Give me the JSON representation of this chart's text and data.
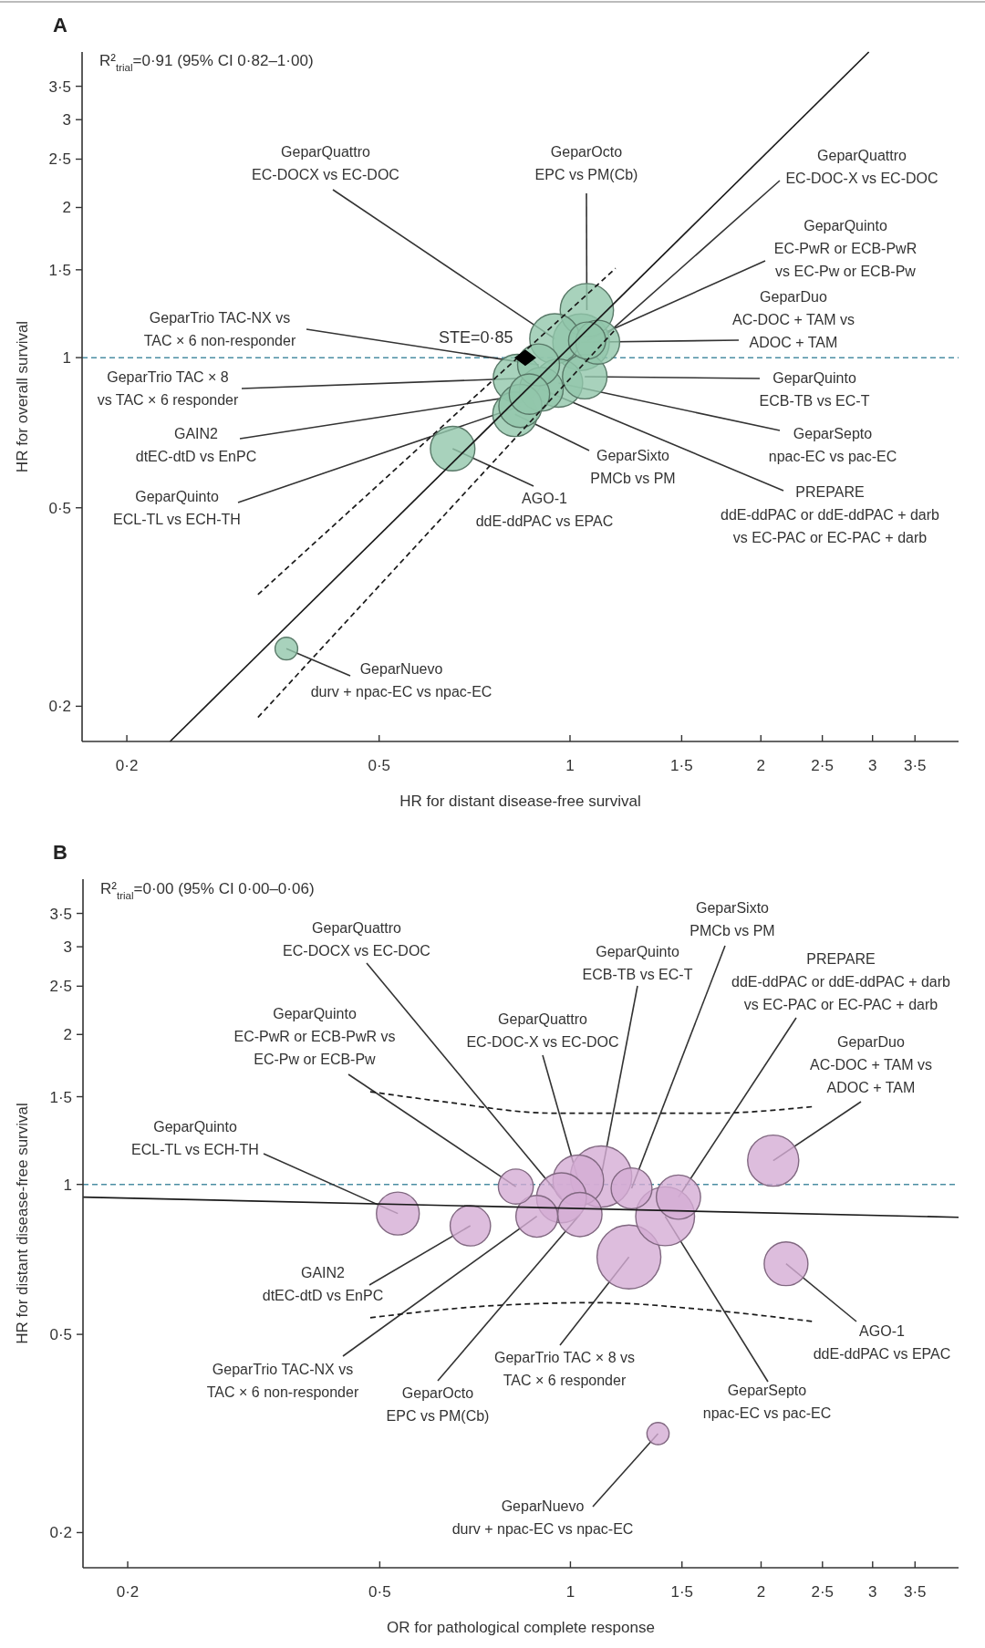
{
  "chart_data": [
    {
      "type": "bubble",
      "title": "A",
      "xlabel": "HR for distant disease-free survival",
      "ylabel": "HR for overall survival",
      "log": "xy",
      "xlim": [
        0.17,
        4.1
      ],
      "ylim": [
        0.17,
        4.1
      ],
      "xticks": [
        {
          "value": 0.2,
          "label": "0·2"
        },
        {
          "value": 0.5,
          "label": "0·5"
        },
        1,
        {
          "value": 1.5,
          "label": "1·5"
        },
        2,
        {
          "value": 2.5,
          "label": "2·5"
        },
        3,
        {
          "value": 3.5,
          "label": "3·5"
        }
      ],
      "yticks": [
        {
          "value": 0.2,
          "label": "0·2"
        },
        {
          "value": 0.5,
          "label": "0·5"
        },
        1,
        {
          "value": 1.5,
          "label": "1·5"
        },
        2,
        {
          "value": 2.5,
          "label": "2·5"
        },
        3,
        {
          "value": 3.5,
          "label": "3·5"
        }
      ],
      "series": [
        {
          "type": "bubble",
          "color": "#92c7ab",
          "x": [
            0.835,
            0.863,
            1.064,
            0.892,
            0.946,
            1.063,
            1.106,
            1.055,
            0.819,
            0.901,
            0.959,
            0.826,
            1.041,
            0.653,
            0.357
          ],
          "values": [
            0.8,
            0.845,
            1.082,
            0.967,
            1.091,
            1.245,
            1.074,
            0.916,
            0.77,
            0.864,
            0.889,
            0.908,
            1.074,
            0.657,
            0.261
          ],
          "sizes": [
            0.58,
            0.51,
            0.43,
            0.55,
            0.78,
            0.89,
            0.6,
            0.62,
            0.62,
            0.6,
            0.73,
            0.73,
            1,
            0.62,
            0.16
          ]
        },
        {
          "type": "line",
          "color": "#1a1a1a",
          "line_style": "solid",
          "x": [
            0.234,
            2.96
          ],
          "values": [
            0.17,
            4.1
          ]
        },
        {
          "type": "line",
          "color": "#1a1a1a",
          "line_style": "dashed",
          "x": [
            0.322,
            1.18
          ],
          "values": [
            0.335,
            1.51
          ]
        },
        {
          "type": "line",
          "color": "#1a1a1a",
          "line_style": "dashed",
          "x": [
            0.322,
            1.18
          ],
          "values": [
            0.19,
            1.14
          ]
        },
        {
          "type": "scatter",
          "color": "#000000",
          "marker": "diamond",
          "x": [
            0.85
          ],
          "values": [
            1
          ]
        }
      ],
      "ref_lines": [
        {
          "axis": "y",
          "value": 1,
          "color": "#4b8ea3",
          "line_style": "dashed"
        }
      ],
      "annotations": [
        "R²$_{trial}$=0·91 (95% CI 0·82–1·00)",
        {
          "text": "STE=0·85",
          "x": 0.85,
          "y": 1
        },
        {
          "text": "GeparQuinto\nECL-TL vs ECH-TH",
          "x": 0.835,
          "y": 0.8
        },
        {
          "text": "GAIN2\ndtEC-dtD vs EnPC",
          "x": 0.863,
          "y": 0.845
        },
        {
          "text": "GeparQuinto\nEC-PwR or ECB-PwR\nvs EC-Pw or ECB-Pw",
          "x": 1.064,
          "y": 1.082
        },
        {
          "text": "GeparTrio TAC-NX vs\nTAC × 6 non-responder",
          "x": 0.892,
          "y": 0.967
        },
        {
          "text": "GeparQuattro\nEC-DOCX vs EC-DOC",
          "x": 0.946,
          "y": 1.091
        },
        {
          "text": "GeparOcto\nEPC vs PM(Cb)",
          "x": 1.063,
          "y": 1.245
        },
        {
          "text": "GeparQuattro\nEC-DOC-X vs EC-DOC",
          "x": 1.106,
          "y": 1.074
        },
        {
          "text": "GeparQuinto\nECB-TB vs EC-T",
          "x": 1.055,
          "y": 0.916
        },
        {
          "text": "GeparSixto\nPMCb vs PM",
          "x": 0.819,
          "y": 0.77
        },
        {
          "text": "PREPARE\nddE-ddPAC or ddE-ddPAC + darb\nvs EC-PAC or EC-PAC + darb",
          "x": 0.901,
          "y": 0.864
        },
        {
          "text": "GeparSepto\nnpac-EC vs pac-EC",
          "x": 0.959,
          "y": 0.889
        },
        {
          "text": "GeparTrio TAC × 8\nvs TAC × 6 responder",
          "x": 0.826,
          "y": 0.908
        },
        {
          "text": "GeparDuo\nAC-DOC + TAM vs\nADOC + TAM",
          "x": 1.041,
          "y": 1.074
        },
        {
          "text": "AGO-1\nddE-ddPAC vs EPAC",
          "x": 0.653,
          "y": 0.657
        },
        {
          "text": "GeparNuevo\ndurv + npac-EC vs npac-EC",
          "x": 0.357,
          "y": 0.261
        }
      ]
    },
    {
      "type": "bubble",
      "title": "B",
      "xlabel": "OR for pathological complete response",
      "ylabel": "HR for distant disease-free survival",
      "log": "xy",
      "xlim": [
        0.17,
        4.1
      ],
      "ylim": [
        0.17,
        4.1
      ],
      "xticks": [
        {
          "value": 0.2,
          "label": "0·2"
        },
        {
          "value": 0.5,
          "label": "0·5"
        },
        1,
        {
          "value": 1.5,
          "label": "1·5"
        },
        2,
        {
          "value": 2.5,
          "label": "2·5"
        },
        3,
        {
          "value": 3.5,
          "label": "3·5"
        }
      ],
      "yticks": [
        {
          "value": 0.2,
          "label": "0·2"
        },
        {
          "value": 0.5,
          "label": "0·5"
        },
        1,
        {
          "value": 1.5,
          "label": "1·5"
        },
        2,
        {
          "value": 2.5,
          "label": "2·5"
        },
        3,
        {
          "value": 3.5,
          "label": "3·5"
        }
      ],
      "series": [
        {
          "type": "bubble",
          "color": "#d4acd4",
          "x": [
            0.534,
            0.695,
            0.82,
            0.885,
            0.968,
            1.035,
            1.029,
            1.118,
            1.249,
            1.481,
            1.411,
            1.237,
            2.09,
            2.19,
            1.375
          ],
          "values": [
            0.874,
            0.826,
            0.99,
            0.863,
            0.94,
            0.87,
            1.019,
            1.037,
            0.982,
            0.943,
            0.863,
            0.715,
            1.116,
            0.693,
            0.316
          ],
          "sizes": [
            0.45,
            0.4,
            0.3,
            0.43,
            0.61,
            0.48,
            0.63,
            0.92,
            0.41,
            0.48,
            0.85,
            1,
            0.64,
            0.47,
            0.12
          ]
        },
        {
          "type": "line",
          "color": "#1a1a1a",
          "line_style": "solid",
          "x": [
            0.17,
            4.1
          ],
          "values": [
            0.943,
            0.859
          ]
        },
        {
          "type": "line",
          "color": "#1a1a1a",
          "line_style": "dashed",
          "x": [
            0.483,
            0.62,
            0.94,
            1.67,
            2.43
          ],
          "values": [
            1.535,
            1.47,
            1.39,
            1.39,
            1.434
          ]
        },
        {
          "type": "line",
          "color": "#1a1a1a",
          "line_style": "dashed",
          "x": [
            0.483,
            0.755,
            1.1,
            1.62,
            2.43
          ],
          "values": [
            0.54,
            0.571,
            0.579,
            0.561,
            0.53
          ]
        }
      ],
      "ref_lines": [
        {
          "axis": "y",
          "value": 1,
          "color": "#4b8ea3",
          "line_style": "dashed"
        }
      ],
      "annotations": [
        "R²$_{trial}$=0·00 (95% CI 0·00–0·06)",
        {
          "text": "GeparQuinto\nECL-TL vs ECH-TH",
          "x": 0.534,
          "y": 0.874
        },
        {
          "text": "GAIN2\ndtEC-dtD vs EnPC",
          "x": 0.695,
          "y": 0.826
        },
        {
          "text": "GeparQuinto\nEC-PwR or ECB-PwR vs\nEC-Pw or ECB-Pw",
          "x": 0.82,
          "y": 0.99
        },
        {
          "text": "GeparTrio TAC-NX vs\nTAC × 6 non-responder",
          "x": 0.885,
          "y": 0.863
        },
        {
          "text": "GeparQuattro\nEC-DOCX vs EC-DOC",
          "x": 0.968,
          "y": 0.94
        },
        {
          "text": "GeparOcto\nEPC vs PM(Cb)",
          "x": 1.035,
          "y": 0.87
        },
        {
          "text": "GeparQuattro\nEC-DOC-X vs EC-DOC",
          "x": 1.029,
          "y": 1.019
        },
        {
          "text": "GeparQuinto\nECB-TB vs EC-T",
          "x": 1.118,
          "y": 1.037
        },
        {
          "text": "GeparSixto\nPMCb vs PM",
          "x": 1.249,
          "y": 0.982
        },
        {
          "text": "PREPARE\nddE-ddPAC or ddE-ddPAC + darb\nvs EC-PAC or EC-PAC + darb",
          "x": 1.481,
          "y": 0.943
        },
        {
          "text": "GeparSepto\nnpac-EC vs pac-EC",
          "x": 1.411,
          "y": 0.863
        },
        {
          "text": "GeparTrio TAC × 8 vs\nTAC × 6 responder",
          "x": 1.237,
          "y": 0.715
        },
        {
          "text": "GeparDuo\nAC-DOC + TAM vs\nADOC + TAM",
          "x": 2.09,
          "y": 1.116
        },
        {
          "text": "AGO-1\nddE-ddPAC vs EPAC",
          "x": 2.19,
          "y": 0.693
        },
        {
          "text": "GeparNuevo\ndurv + npac-EC vs npac-EC",
          "x": 1.375,
          "y": 0.316
        }
      ]
    }
  ]
}
